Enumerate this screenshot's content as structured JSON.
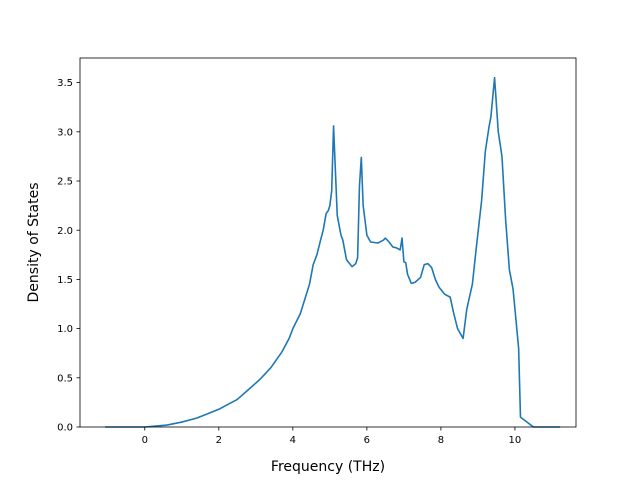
{
  "chart_data": {
    "type": "line",
    "title": "",
    "xlabel": "Frequency (THz)",
    "ylabel": "Density of States",
    "xlim": [
      -1.75,
      11.65
    ],
    "ylim": [
      0.0,
      3.75
    ],
    "xticks": [
      0,
      2,
      4,
      6,
      8,
      10
    ],
    "yticks": [
      0.0,
      0.5,
      1.0,
      1.5,
      2.0,
      2.5,
      3.0,
      3.5
    ],
    "grid": false,
    "legend": "none",
    "series": [
      {
        "color": "#1f77b4",
        "x": [
          -1.05,
          -0.5,
          0.0,
          0.3,
          0.6,
          1.0,
          1.4,
          1.8,
          2.0,
          2.2,
          2.5,
          2.8,
          3.1,
          3.4,
          3.7,
          3.9,
          4.0,
          4.2,
          4.35,
          4.45,
          4.55,
          4.65,
          4.75,
          4.82,
          4.9,
          4.96,
          5.0,
          5.05,
          5.1,
          5.2,
          5.3,
          5.35,
          5.45,
          5.6,
          5.7,
          5.75,
          5.8,
          5.85,
          5.9,
          6.0,
          6.1,
          6.3,
          6.45,
          6.5,
          6.6,
          6.7,
          6.8,
          6.9,
          6.95,
          7.0,
          7.05,
          7.1,
          7.2,
          7.3,
          7.45,
          7.55,
          7.65,
          7.75,
          7.85,
          7.95,
          8.1,
          8.25,
          8.35,
          8.45,
          8.6,
          8.7,
          8.85,
          8.95,
          9.1,
          9.2,
          9.3,
          9.35,
          9.45,
          9.55,
          9.65,
          9.75,
          9.85,
          9.95,
          10.05,
          10.1,
          10.15,
          10.5,
          11.2
        ],
        "y": [
          0.0,
          0.0,
          0.0,
          0.01,
          0.02,
          0.05,
          0.09,
          0.15,
          0.18,
          0.22,
          0.28,
          0.38,
          0.48,
          0.6,
          0.76,
          0.9,
          1.0,
          1.15,
          1.33,
          1.45,
          1.65,
          1.75,
          1.9,
          2.0,
          2.17,
          2.2,
          2.25,
          2.4,
          3.06,
          2.15,
          1.95,
          1.9,
          1.7,
          1.63,
          1.66,
          1.72,
          2.45,
          2.74,
          2.25,
          1.95,
          1.88,
          1.87,
          1.9,
          1.92,
          1.88,
          1.83,
          1.82,
          1.8,
          1.92,
          1.68,
          1.67,
          1.55,
          1.46,
          1.47,
          1.52,
          1.65,
          1.66,
          1.62,
          1.5,
          1.42,
          1.35,
          1.32,
          1.15,
          1.0,
          0.9,
          1.2,
          1.45,
          1.8,
          2.3,
          2.8,
          3.05,
          3.15,
          3.55,
          3.0,
          2.75,
          2.1,
          1.6,
          1.4,
          1.0,
          0.8,
          0.1,
          0.0,
          0.0
        ]
      }
    ]
  }
}
